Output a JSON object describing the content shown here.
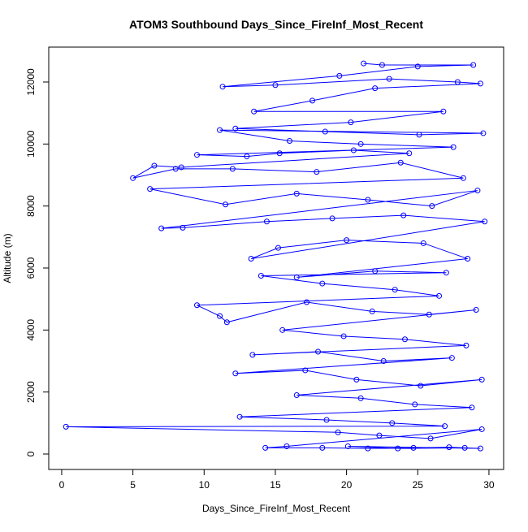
{
  "chart_data": {
    "type": "line",
    "markers": "circle-open",
    "title": "ATOM3 Southbound Days_Since_FireInf_Most_Recent",
    "x_label": "Days_Since_FireInf_Most_Recent",
    "y_label": "Altitude (m)",
    "color": "#0000ff",
    "xlim": [
      -0.91,
      31.03
    ],
    "ylim": [
      -498,
      13126
    ],
    "xticks": [
      0,
      5,
      10,
      15,
      20,
      25,
      30
    ],
    "yticks": [
      0,
      2000,
      4000,
      6000,
      8000,
      10000,
      12000
    ],
    "x": [
      21.2,
      22.5,
      28.9,
      25,
      19.5,
      11.3,
      15,
      23,
      27.8,
      29.4,
      22,
      17.6,
      13.5,
      26.8,
      20.3,
      12.2,
      18.5,
      25.1,
      29.6,
      11.1,
      16,
      21,
      27.5,
      9.5,
      13,
      15.3,
      20.5,
      24.4,
      8.4,
      6.5,
      5,
      8,
      12,
      17.9,
      23.8,
      28.2,
      6.2,
      11.5,
      16.5,
      21.5,
      26,
      29.2,
      7,
      8.5,
      14.4,
      19,
      24,
      29.7,
      13.3,
      15.2,
      20,
      25.4,
      28.5,
      16.5,
      22,
      27,
      14,
      18.3,
      23.4,
      26.5,
      9.5,
      11.1,
      11.6,
      17.2,
      21.8,
      25.8,
      29.1,
      15.5,
      19.8,
      24.1,
      28.4,
      13.4,
      18,
      22.6,
      27.4,
      12.2,
      17.1,
      20.7,
      25.2,
      29.5,
      16.5,
      21,
      24.8,
      28.8,
      12.5,
      18.6,
      23.2,
      26.9,
      0.3,
      19.4,
      22.3,
      25.9,
      29.5,
      15.8,
      14.3,
      18.3,
      21.5,
      24.7,
      27.2,
      29.4,
      20.1,
      23.6,
      28.3
    ],
    "y": [
      12600,
      12550,
      12550,
      12500,
      12200,
      11850,
      11900,
      12100,
      12000,
      11950,
      11800,
      11400,
      11050,
      11050,
      10700,
      10500,
      10400,
      10300,
      10350,
      10450,
      10100,
      10000,
      9900,
      9650,
      9600,
      9700,
      9800,
      9700,
      9250,
      9300,
      8900,
      9200,
      9200,
      9100,
      9400,
      8900,
      8550,
      8050,
      8400,
      8200,
      8000,
      8500,
      7280,
      7300,
      7500,
      7600,
      7700,
      7500,
      6300,
      6650,
      6900,
      6800,
      6300,
      5700,
      5900,
      5850,
      5750,
      5500,
      5300,
      5100,
      4800,
      4450,
      4250,
      4900,
      4600,
      4500,
      4650,
      4000,
      3800,
      3700,
      3500,
      3200,
      3300,
      3000,
      3100,
      2600,
      2700,
      2400,
      2200,
      2400,
      1900,
      1800,
      1600,
      1500,
      1200,
      1100,
      1000,
      900,
      880,
      700,
      600,
      500,
      800,
      250,
      200,
      200,
      180,
      200,
      220,
      180,
      250,
      180,
      200
    ]
  }
}
